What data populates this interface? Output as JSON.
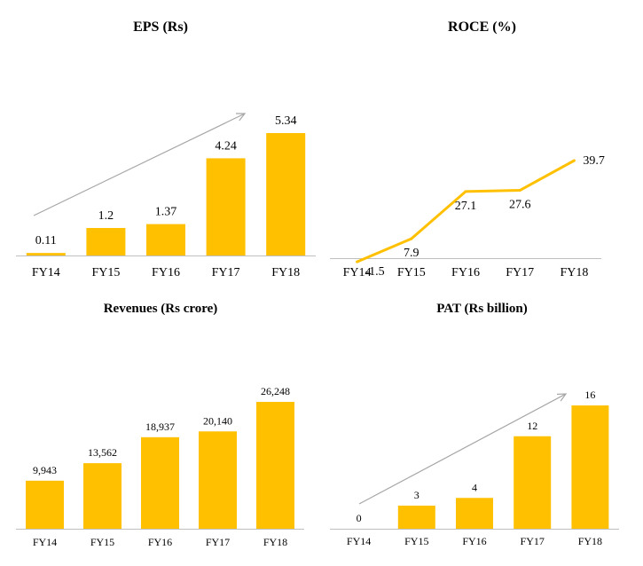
{
  "colors": {
    "bar": "#FFC000",
    "axis": "#bfbfbf",
    "trend_arrow": "#a6a6a6"
  },
  "chart_data": [
    {
      "id": "eps",
      "type": "bar",
      "title": "EPS (Rs)",
      "categories": [
        "FY14",
        "FY15",
        "FY16",
        "FY17",
        "FY18"
      ],
      "values": [
        0.11,
        1.2,
        1.37,
        4.24,
        5.34
      ],
      "value_labels": [
        "0.11",
        "1.2",
        "1.37",
        "4.24",
        "5.34"
      ],
      "ylim": [
        0,
        5.34
      ],
      "grid": false,
      "legend": "none",
      "trend_arrow": true
    },
    {
      "id": "roce",
      "type": "line",
      "title": "ROCE (%)",
      "categories": [
        "FY14",
        "FY15",
        "FY16",
        "FY17",
        "FY18"
      ],
      "values": [
        -1.5,
        7.9,
        27.1,
        27.6,
        39.7
      ],
      "value_labels": [
        "-1.5",
        "7.9",
        "27.1",
        "27.6",
        "39.7"
      ],
      "ylim": [
        -1.5,
        39.7
      ],
      "grid": false,
      "legend": "none"
    },
    {
      "id": "revenues",
      "type": "bar",
      "title": "Revenues (Rs crore)",
      "categories": [
        "FY14",
        "FY15",
        "FY16",
        "FY17",
        "FY18"
      ],
      "values": [
        9943,
        13562,
        18937,
        20140,
        26248
      ],
      "value_labels": [
        "9,943",
        "13,562",
        "18,937",
        "20,140",
        "26,248"
      ],
      "ylim": [
        0,
        26248
      ],
      "grid": false,
      "legend": "none"
    },
    {
      "id": "pat",
      "type": "bar",
      "title": "PAT (Rs billion)",
      "categories": [
        "FY14",
        "FY15",
        "FY16",
        "FY17",
        "FY18"
      ],
      "values": [
        0,
        3,
        4,
        12,
        16
      ],
      "value_labels": [
        "0",
        "3",
        "4",
        "12",
        "16"
      ],
      "ylim": [
        0,
        16
      ],
      "grid": false,
      "legend": "none",
      "trend_arrow": true
    }
  ]
}
